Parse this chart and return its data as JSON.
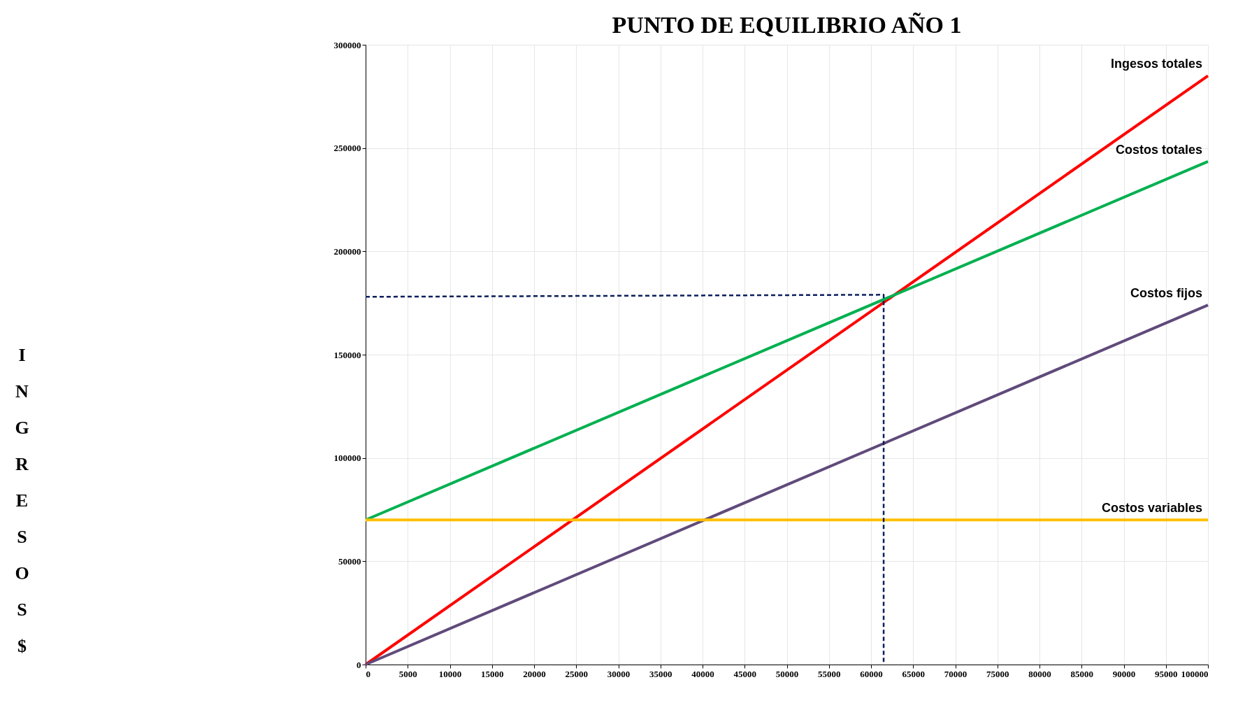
{
  "chart_data": {
    "type": "line",
    "title": "PUNTO DE EQUILIBRIO AÑO 1",
    "ylabel": "INGRESOS $",
    "xlim": [
      0,
      100000
    ],
    "xticks": [
      0,
      5000,
      10000,
      15000,
      20000,
      25000,
      30000,
      35000,
      40000,
      45000,
      50000,
      55000,
      60000,
      65000,
      70000,
      75000,
      80000,
      85000,
      90000,
      95000,
      100000
    ],
    "ylim": [
      0,
      300000
    ],
    "yticks": [
      0,
      50000,
      100000,
      150000,
      200000,
      250000,
      300000
    ],
    "grid": true,
    "marker": "none",
    "series": [
      {
        "name": "Ingesos totales",
        "color": "#ff0000",
        "x": [
          0,
          100000
        ],
        "values": [
          0,
          285000
        ]
      },
      {
        "name": "Costos totales",
        "color": "#00b050",
        "x": [
          0,
          100000
        ],
        "values": [
          70000,
          243500
        ]
      },
      {
        "name": "Costos fijos",
        "color": "#604a7b",
        "x": [
          0,
          100000
        ],
        "values": [
          0,
          174000
        ]
      },
      {
        "name": "Costos variables",
        "color": "#ffc000",
        "x": [
          0,
          100000
        ],
        "values": [
          70000,
          70000
        ]
      },
      {
        "color": "#0b1f5c",
        "line_style": "dashed",
        "x": [
          0,
          61500,
          61500
        ],
        "values": [
          178000,
          179000,
          0
        ]
      }
    ]
  }
}
